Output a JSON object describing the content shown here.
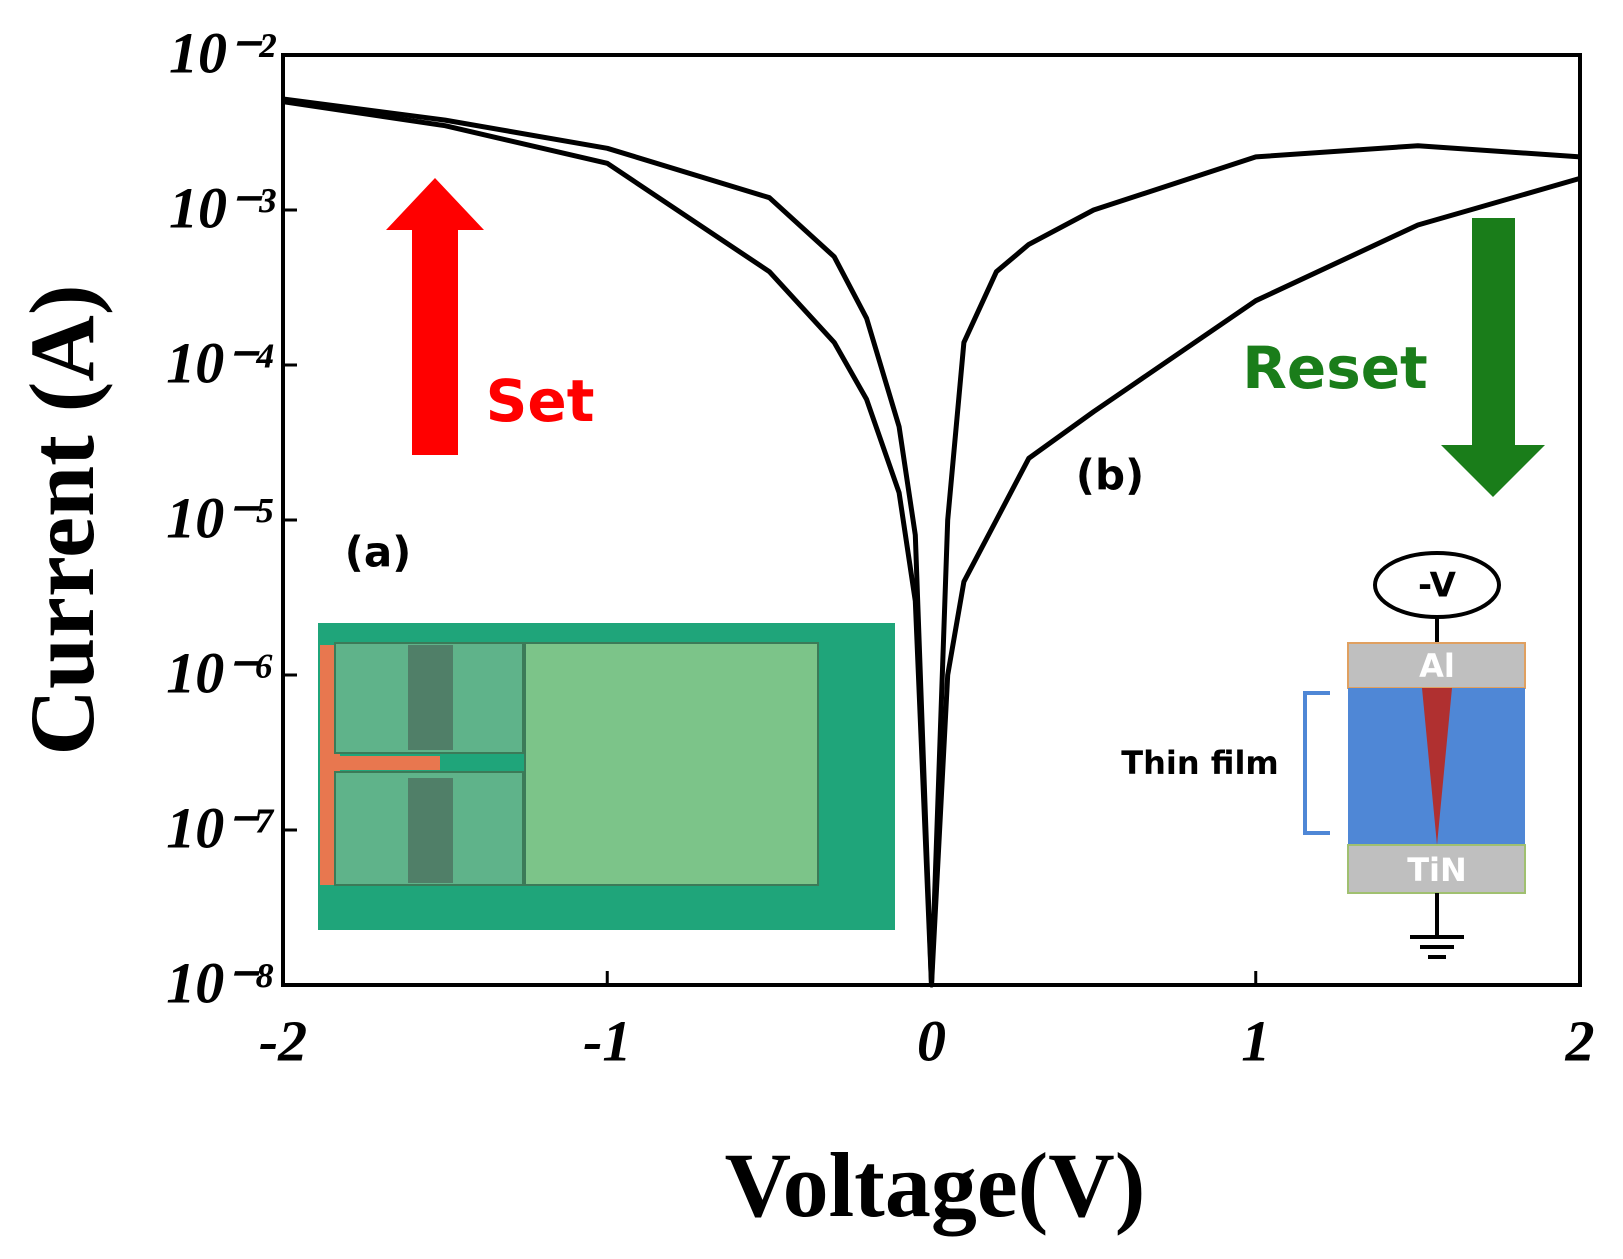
{
  "chart_data": {
    "type": "line",
    "xlabel": "Voltage(V)",
    "ylabel": "Current (A)",
    "xlim": [
      -2,
      2
    ],
    "xticks": [
      -2,
      -1,
      0,
      1,
      2
    ],
    "ylim": [
      1e-08,
      0.01
    ],
    "yscale": "log",
    "yticks": [
      {
        "value": 0.01,
        "label": "10⁻²"
      },
      {
        "value": 0.001,
        "label": "10⁻³"
      },
      {
        "value": 0.0001,
        "label": "10⁻⁴"
      },
      {
        "value": 1e-05,
        "label": "10⁻⁵"
      },
      {
        "value": 1e-06,
        "label": "10⁻⁶"
      },
      {
        "value": 1e-07,
        "label": "10⁻⁷"
      },
      {
        "value": 1e-08,
        "label": "10⁻⁸"
      }
    ],
    "grid": false,
    "x": [
      -2,
      -1.5,
      -1,
      -0.5,
      -0.3,
      -0.2,
      -0.1,
      -0.05,
      0,
      0.05,
      0.1,
      0.2,
      0.3,
      0.5,
      1,
      1.5,
      2
    ],
    "series": [
      {
        "color": "#000000",
        "values": [
          0.0052,
          0.0038,
          0.0025,
          0.0012,
          0.0005,
          0.0002,
          4e-05,
          8e-06,
          1e-08,
          1e-05,
          0.00014,
          0.0004,
          0.0006,
          0.001,
          0.0022,
          0.0026,
          0.0022
        ]
      },
      {
        "color": "#000000",
        "values": [
          0.005,
          0.0035,
          0.002,
          0.0004,
          0.00014,
          6e-05,
          1.5e-05,
          3e-06,
          1e-08,
          1e-06,
          4e-06,
          1e-05,
          2.5e-05,
          5e-05,
          0.00026,
          0.0008,
          0.0016
        ]
      }
    ],
    "annotations": [
      "Set",
      "Reset",
      "(a)",
      "(b)",
      "Thin film",
      "-V",
      "Al",
      "TiN"
    ]
  }
}
